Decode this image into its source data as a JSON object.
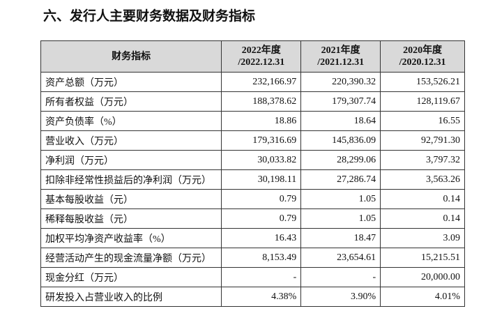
{
  "title": "六、发行人主要财务数据及财务指标",
  "table": {
    "header": {
      "label": "财务指标",
      "columns": [
        {
          "year": "2022年度",
          "date": "/2022.12.31"
        },
        {
          "year": "2021年度",
          "date": "/2021.12.31"
        },
        {
          "year": "2020年度",
          "date": "/2020.12.31"
        }
      ]
    },
    "rows": [
      [
        "资产总额（万元）",
        "232,166.97",
        "220,390.32",
        "153,526.21"
      ],
      [
        "所有者权益（万元）",
        "188,378.62",
        "179,307.74",
        "128,119.67"
      ],
      [
        "资产负债率（%）",
        "18.86",
        "18.64",
        "16.55"
      ],
      [
        "营业收入（万元）",
        "179,316.69",
        "145,836.09",
        "92,791.30"
      ],
      [
        "净利润（万元）",
        "30,033.82",
        "28,299.06",
        "3,797.32"
      ],
      [
        "扣除非经常性损益后的净利润（万元）",
        "30,198.11",
        "27,286.74",
        "3,563.26"
      ],
      [
        "基本每股收益（元）",
        "0.79",
        "1.05",
        "0.14"
      ],
      [
        "稀释每股收益（元）",
        "0.79",
        "1.05",
        "0.14"
      ],
      [
        "加权平均净资产收益率（%）",
        "16.43",
        "18.47",
        "3.09"
      ],
      [
        "经营活动产生的现金流量净额（万元）",
        "8,153.49",
        "23,654.61",
        "15,215.51"
      ],
      [
        "现金分红（万元）",
        "-",
        "-",
        "20,000.00"
      ],
      [
        "研发投入占营业收入的比例",
        "4.38%",
        "3.90%",
        "4.01%"
      ]
    ]
  }
}
